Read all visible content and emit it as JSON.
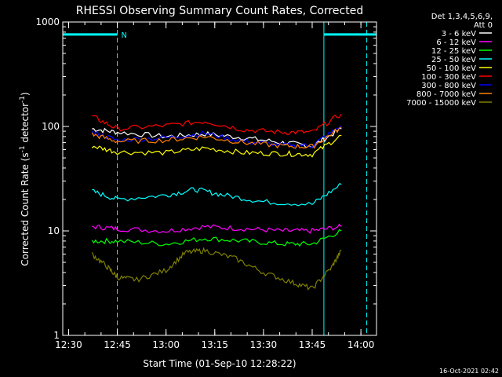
{
  "chart_data": {
    "type": "line",
    "title": "RHESSI Observing Summary Count Rates, Corrected",
    "xlabel": "Start Time (01-Sep-10 12:28:22)",
    "ylabel": "Corrected Count Rate (s",
    "ylabel_sup1": "-1",
    "ylabel_mid": " detector",
    "ylabel_sup2": "-1",
    "ylabel_end": ")",
    "yscale": "log",
    "ylim": [
      1,
      1000
    ],
    "xlim": [
      12.47,
      14.08
    ],
    "x_ticks": [
      {
        "value": 12.5,
        "label": "12:30"
      },
      {
        "value": 12.75,
        "label": "12:45"
      },
      {
        "value": 13.0,
        "label": "13:00"
      },
      {
        "value": 13.25,
        "label": "13:15"
      },
      {
        "value": 13.5,
        "label": "13:30"
      },
      {
        "value": 13.75,
        "label": "13:45"
      },
      {
        "value": 14.0,
        "label": "14:00"
      }
    ],
    "y_ticks": [
      {
        "value": 1,
        "label": "1"
      },
      {
        "value": 10,
        "label": "10"
      },
      {
        "value": 100,
        "label": "100"
      },
      {
        "value": 1000,
        "label": "1000"
      }
    ],
    "legend_header": [
      "Det 1,3,4,5,6,9,",
      "Att 0"
    ],
    "legend_placement": "right",
    "flags": {
      "bar_level": 760,
      "segments": [
        [
          12.47,
          12.75
        ],
        [
          13.81,
          14.08
        ]
      ],
      "dashed_lines": [
        12.75,
        14.03
      ],
      "solid_lines": [
        12.47,
        13.81
      ],
      "label": "N",
      "label_x": 12.77,
      "color": "#00ffff"
    },
    "series": [
      {
        "name": "3 - 6 keV",
        "color": "#ffffff",
        "x": [
          12.62,
          12.75,
          13.0,
          13.2,
          13.4,
          13.6,
          13.75,
          13.9
        ],
        "y": [
          95,
          88,
          80,
          85,
          78,
          70,
          65,
          95
        ]
      },
      {
        "name": "6 - 12 keV",
        "color": "#ff00ff",
        "x": [
          12.62,
          12.75,
          13.0,
          13.2,
          13.4,
          13.6,
          13.75,
          13.9
        ],
        "y": [
          11,
          10.5,
          10,
          11,
          10.5,
          10,
          10,
          11
        ]
      },
      {
        "name": "12 - 25 keV",
        "color": "#00ff00",
        "x": [
          12.62,
          12.75,
          13.0,
          13.2,
          13.4,
          13.6,
          13.75,
          13.9
        ],
        "y": [
          8,
          8,
          7.5,
          8.5,
          8,
          7.5,
          7.5,
          10
        ]
      },
      {
        "name": "25 - 50 keV",
        "color": "#00ffff",
        "x": [
          12.62,
          12.75,
          13.0,
          13.15,
          13.3,
          13.5,
          13.75,
          13.9
        ],
        "y": [
          24,
          20,
          22,
          25,
          22,
          19,
          18,
          28
        ]
      },
      {
        "name": "50 - 100 keV",
        "color": "#ffff00",
        "x": [
          12.62,
          12.75,
          13.0,
          13.2,
          13.4,
          13.6,
          13.75,
          13.9
        ],
        "y": [
          65,
          57,
          56,
          62,
          56,
          55,
          54,
          82
        ]
      },
      {
        "name": "100 - 300 keV",
        "color": "#ff0000",
        "x": [
          12.62,
          12.75,
          13.0,
          13.2,
          13.4,
          13.6,
          13.75,
          13.9
        ],
        "y": [
          125,
          95,
          102,
          112,
          93,
          88,
          88,
          132
        ]
      },
      {
        "name": "300 - 800 keV",
        "color": "#0000ff",
        "x": [
          12.62,
          12.75,
          13.0,
          13.2,
          13.4,
          13.6,
          13.75,
          13.9
        ],
        "y": [
          88,
          74,
          78,
          86,
          72,
          66,
          66,
          102
        ]
      },
      {
        "name": "800 - 7000 keV",
        "color": "#ff8000",
        "x": [
          12.62,
          12.75,
          13.0,
          13.2,
          13.4,
          13.6,
          13.75,
          13.9
        ],
        "y": [
          84,
          72,
          74,
          80,
          70,
          65,
          64,
          98
        ]
      },
      {
        "name": "7000 - 15000 keV",
        "color": "#808000",
        "x": [
          12.62,
          12.7,
          12.75,
          12.85,
          13.0,
          13.1,
          13.2,
          13.35,
          13.5,
          13.65,
          13.75,
          13.85,
          13.9
        ],
        "y": [
          6,
          4.5,
          3.6,
          3.4,
          4.2,
          6.2,
          6.5,
          5.5,
          4.0,
          3.2,
          2.8,
          4.5,
          6.5
        ]
      }
    ]
  },
  "footer_date": "16-Oct-2021 02:42"
}
